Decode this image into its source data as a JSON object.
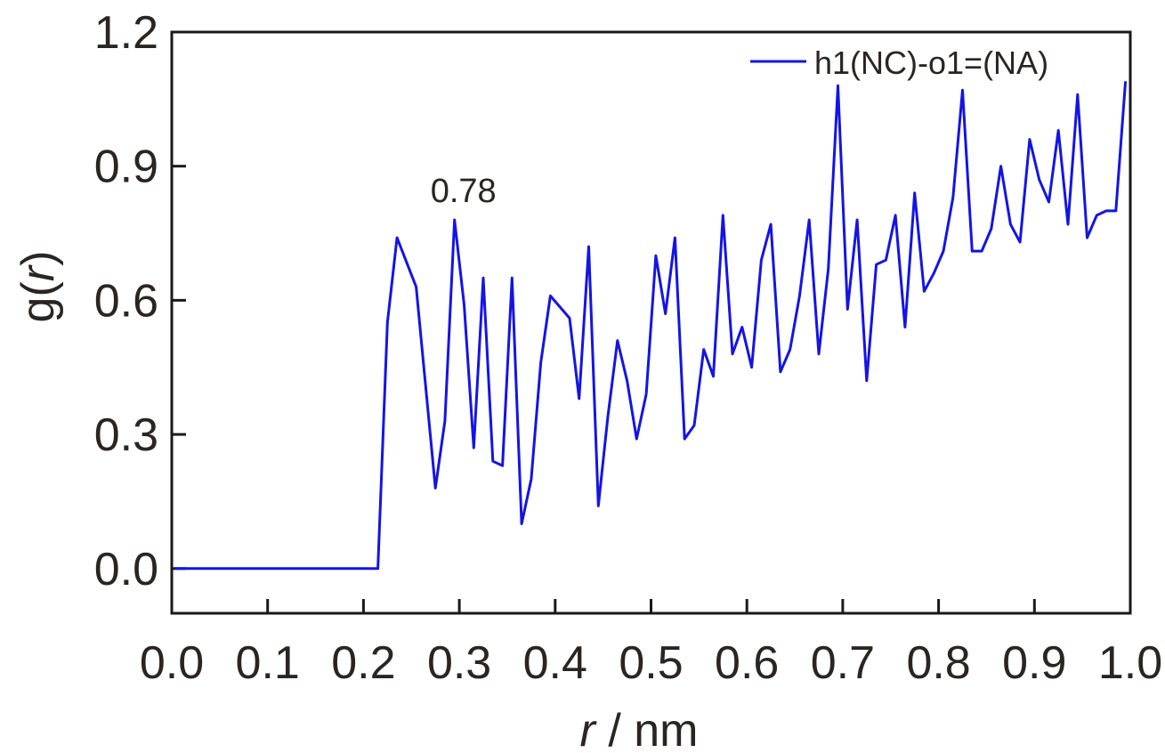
{
  "chart_data": {
    "type": "line",
    "title": "",
    "xlabel": {
      "var": "r",
      "rest": " / nm"
    },
    "ylabel": {
      "pre": "g(",
      "var": "r",
      "post": ")"
    },
    "xlim": [
      0.0,
      1.0
    ],
    "ylim": [
      -0.1,
      1.2
    ],
    "xticks": [
      0.0,
      0.1,
      0.2,
      0.3,
      0.4,
      0.5,
      0.6,
      0.7,
      0.8,
      0.9,
      1.0
    ],
    "yticks": [
      0.0,
      0.3,
      0.6,
      0.9,
      1.2
    ],
    "xtick_labels": [
      "0.0",
      "0.1",
      "0.2",
      "0.3",
      "0.4",
      "0.5",
      "0.6",
      "0.7",
      "0.8",
      "0.9",
      "1.0"
    ],
    "ytick_labels": [
      "0.0",
      "0.3",
      "0.6",
      "0.9",
      "1.2"
    ],
    "grid": false,
    "legend_position": "top-right",
    "series": [
      {
        "name": "h1(NC)-o1=(NA)",
        "color": "#1414e6",
        "points": [
          [
            0.003,
            0.0
          ],
          [
            0.215,
            0.0
          ],
          [
            0.225,
            0.55
          ],
          [
            0.235,
            0.74
          ],
          [
            0.255,
            0.63
          ],
          [
            0.275,
            0.18
          ],
          [
            0.285,
            0.33
          ],
          [
            0.295,
            0.78
          ],
          [
            0.305,
            0.59
          ],
          [
            0.315,
            0.27
          ],
          [
            0.325,
            0.65
          ],
          [
            0.335,
            0.24
          ],
          [
            0.345,
            0.23
          ],
          [
            0.355,
            0.65
          ],
          [
            0.365,
            0.1
          ],
          [
            0.375,
            0.2
          ],
          [
            0.385,
            0.46
          ],
          [
            0.395,
            0.61
          ],
          [
            0.415,
            0.56
          ],
          [
            0.425,
            0.38
          ],
          [
            0.435,
            0.72
          ],
          [
            0.445,
            0.14
          ],
          [
            0.455,
            0.34
          ],
          [
            0.465,
            0.51
          ],
          [
            0.475,
            0.42
          ],
          [
            0.485,
            0.29
          ],
          [
            0.495,
            0.39
          ],
          [
            0.505,
            0.7
          ],
          [
            0.515,
            0.57
          ],
          [
            0.525,
            0.74
          ],
          [
            0.535,
            0.29
          ],
          [
            0.545,
            0.32
          ],
          [
            0.555,
            0.49
          ],
          [
            0.565,
            0.43
          ],
          [
            0.575,
            0.79
          ],
          [
            0.585,
            0.48
          ],
          [
            0.595,
            0.54
          ],
          [
            0.605,
            0.45
          ],
          [
            0.615,
            0.69
          ],
          [
            0.625,
            0.77
          ],
          [
            0.635,
            0.44
          ],
          [
            0.645,
            0.49
          ],
          [
            0.655,
            0.61
          ],
          [
            0.665,
            0.78
          ],
          [
            0.675,
            0.48
          ],
          [
            0.685,
            0.67
          ],
          [
            0.695,
            1.08
          ],
          [
            0.705,
            0.58
          ],
          [
            0.715,
            0.78
          ],
          [
            0.725,
            0.42
          ],
          [
            0.735,
            0.68
          ],
          [
            0.745,
            0.69
          ],
          [
            0.755,
            0.79
          ],
          [
            0.765,
            0.54
          ],
          [
            0.775,
            0.84
          ],
          [
            0.785,
            0.62
          ],
          [
            0.795,
            0.66
          ],
          [
            0.805,
            0.71
          ],
          [
            0.815,
            0.83
          ],
          [
            0.825,
            1.07
          ],
          [
            0.835,
            0.71
          ],
          [
            0.845,
            0.71
          ],
          [
            0.855,
            0.76
          ],
          [
            0.865,
            0.9
          ],
          [
            0.875,
            0.77
          ],
          [
            0.885,
            0.73
          ],
          [
            0.895,
            0.96
          ],
          [
            0.905,
            0.87
          ],
          [
            0.915,
            0.82
          ],
          [
            0.925,
            0.98
          ],
          [
            0.935,
            0.77
          ],
          [
            0.945,
            1.06
          ],
          [
            0.955,
            0.74
          ],
          [
            0.965,
            0.79
          ],
          [
            0.975,
            0.8
          ],
          [
            0.985,
            0.8
          ],
          [
            0.995,
            1.09
          ]
        ]
      }
    ],
    "annotations": [
      {
        "text": "0.78",
        "x": 0.295,
        "y": 0.78
      }
    ]
  }
}
